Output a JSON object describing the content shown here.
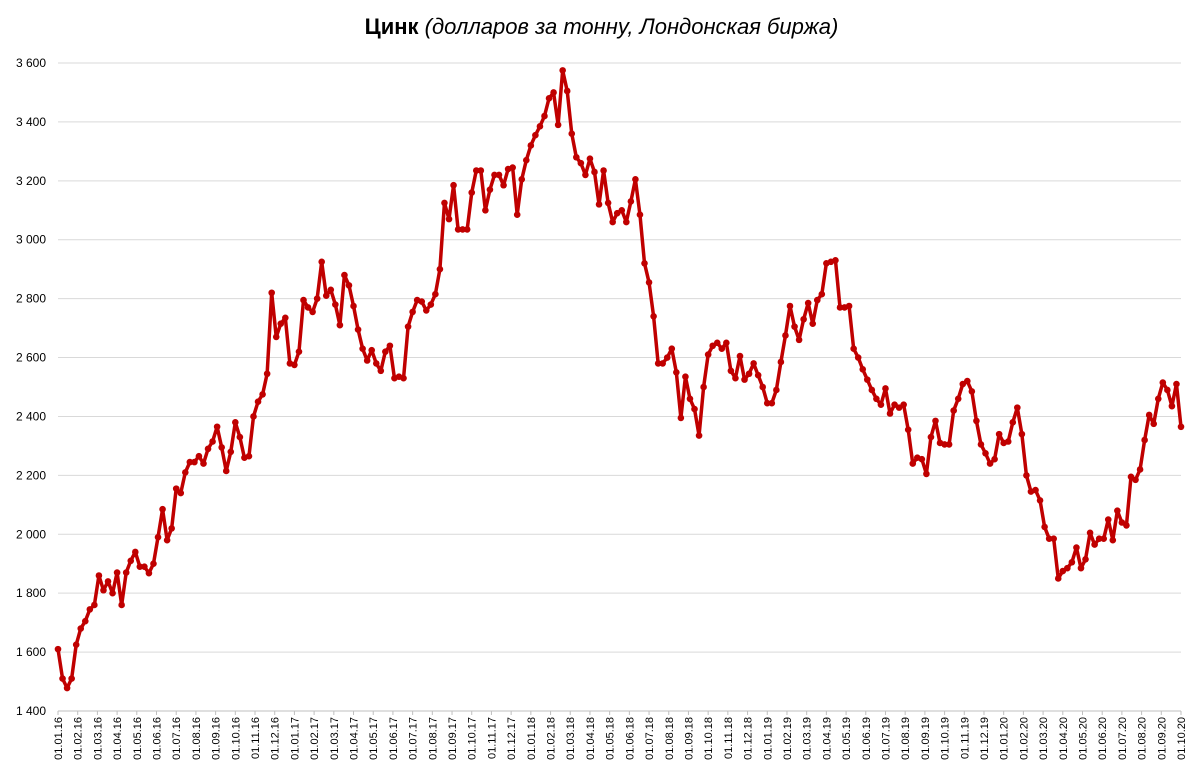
{
  "chart_data": {
    "type": "line",
    "title_bold": "Цинк",
    "title_italic": "(долларов за тонну, Лондонская биржа)",
    "xlabel": "",
    "ylabel": "",
    "ylim": [
      1400,
      3600
    ],
    "y_ticks": [
      1400,
      1600,
      1800,
      2000,
      2200,
      2400,
      2600,
      2800,
      3000,
      3200,
      3400,
      3600
    ],
    "y_tick_labels": [
      "1 400",
      "1 600",
      "1 800",
      "2 000",
      "2 200",
      "2 400",
      "2 600",
      "2 800",
      "3 000",
      "3 200",
      "3 400",
      "3 600"
    ],
    "x_tick_labels": [
      "01.01.16",
      "01.02.16",
      "01.03.16",
      "01.04.16",
      "01.05.16",
      "01.06.16",
      "01.07.16",
      "01.08.16",
      "01.09.16",
      "01.10.16",
      "01.11.16",
      "01.12.16",
      "01.01.17",
      "01.02.17",
      "01.03.17",
      "01.04.17",
      "01.05.17",
      "01.06.17",
      "01.07.17",
      "01.08.17",
      "01.09.17",
      "01.10.17",
      "01.11.17",
      "01.12.17",
      "01.01.18",
      "01.02.18",
      "01.03.18",
      "01.04.18",
      "01.05.18",
      "01.06.18",
      "01.07.18",
      "01.08.18",
      "01.09.18",
      "01.10.18",
      "01.11.18",
      "01.12.18",
      "01.01.19",
      "01.02.19",
      "01.03.19",
      "01.04.19",
      "01.05.19",
      "01.06.19",
      "01.07.19",
      "01.08.19",
      "01.09.19",
      "01.10.19",
      "01.11.19",
      "01.12.19",
      "01.01.20",
      "01.02.20",
      "01.03.20",
      "01.04.20",
      "01.05.20",
      "01.06.20",
      "01.07.20",
      "01.08.20",
      "01.09.20",
      "01.10.20"
    ],
    "grid": true,
    "legend": false,
    "line_color": "#c00000",
    "grid_color": "#d9d9d9",
    "series": [
      {
        "values": [
          1610,
          1510,
          1478,
          1510,
          1625,
          1680,
          1705,
          1745,
          1760,
          1860,
          1810,
          1840,
          1800,
          1870,
          1760,
          1870,
          1910,
          1940,
          1890,
          1890,
          1868,
          1900,
          1990,
          2085,
          1980,
          2020,
          2155,
          2140,
          2210,
          2245,
          2245,
          2265,
          2240,
          2290,
          2315,
          2365,
          2295,
          2215,
          2280,
          2380,
          2330,
          2260,
          2265,
          2400,
          2450,
          2475,
          2545,
          2820,
          2670,
          2715,
          2735,
          2580,
          2575,
          2620,
          2795,
          2770,
          2755,
          2800,
          2925,
          2810,
          2830,
          2780,
          2710,
          2880,
          2845,
          2775,
          2695,
          2630,
          2590,
          2625,
          2580,
          2555,
          2620,
          2640,
          2530,
          2535,
          2530,
          2705,
          2755,
          2795,
          2790,
          2760,
          2780,
          2815,
          2900,
          3125,
          3070,
          3185,
          3035,
          3035,
          3035,
          3160,
          3235,
          3235,
          3100,
          3170,
          3220,
          3220,
          3185,
          3240,
          3245,
          3085,
          3205,
          3270,
          3320,
          3355,
          3385,
          3420,
          3480,
          3500,
          3390,
          3575,
          3505,
          3360,
          3280,
          3260,
          3220,
          3275,
          3230,
          3120,
          3235,
          3125,
          3060,
          3090,
          3100,
          3060,
          3130,
          3205,
          3085,
          2920,
          2855,
          2740,
          2580,
          2580,
          2600,
          2630,
          2550,
          2395,
          2535,
          2460,
          2425,
          2335,
          2500,
          2610,
          2640,
          2650,
          2630,
          2650,
          2555,
          2530,
          2605,
          2525,
          2545,
          2580,
          2540,
          2500,
          2445,
          2445,
          2490,
          2585,
          2675,
          2775,
          2705,
          2660,
          2730,
          2785,
          2715,
          2795,
          2815,
          2920,
          2925,
          2930,
          2770,
          2770,
          2775,
          2630,
          2600,
          2560,
          2525,
          2490,
          2460,
          2440,
          2495,
          2410,
          2440,
          2430,
          2440,
          2355,
          2240,
          2260,
          2255,
          2205,
          2330,
          2385,
          2310,
          2305,
          2305,
          2420,
          2460,
          2510,
          2520,
          2485,
          2385,
          2305,
          2275,
          2240,
          2255,
          2340,
          2310,
          2315,
          2380,
          2430,
          2340,
          2200,
          2145,
          2150,
          2115,
          2025,
          1985,
          1985,
          1850,
          1875,
          1885,
          1905,
          1955,
          1885,
          1915,
          2005,
          1965,
          1985,
          1985,
          2050,
          1980,
          2080,
          2040,
          2030,
          2195,
          2185,
          2220,
          2320,
          2405,
          2375,
          2460,
          2515,
          2490,
          2435,
          2510,
          2365
        ]
      }
    ]
  }
}
